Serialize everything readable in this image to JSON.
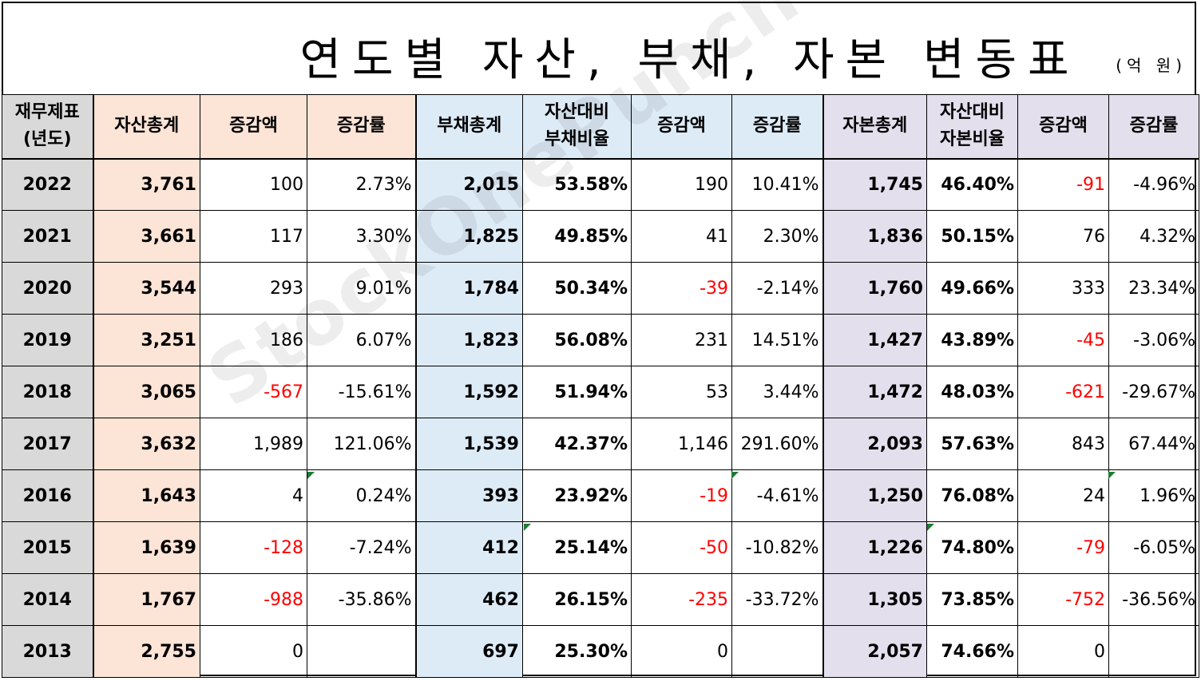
{
  "title": "연도별 자산, 부채, 자본 변동표",
  "unit": "(억 원)",
  "watermark": "StockOnePunch",
  "colors": {
    "neg": "#ff0000",
    "asset": "#fce4d6",
    "liability": "#ddebf7",
    "equity": "#e4dfec",
    "year": "#d9d9d9"
  },
  "headers": [
    {
      "l1": "재무제표",
      "l2": "(년도)"
    },
    {
      "l1": "자산총계",
      "l2": ""
    },
    {
      "l1": "증감액",
      "l2": ""
    },
    {
      "l1": "증감률",
      "l2": ""
    },
    {
      "l1": "부채총계",
      "l2": ""
    },
    {
      "l1": "자산대비",
      "l2": "부채비율"
    },
    {
      "l1": "증감액",
      "l2": ""
    },
    {
      "l1": "증감률",
      "l2": ""
    },
    {
      "l1": "자본총계",
      "l2": ""
    },
    {
      "l1": "자산대비",
      "l2": "자본비율"
    },
    {
      "l1": "증감액",
      "l2": ""
    },
    {
      "l1": "증감률",
      "l2": ""
    }
  ],
  "rows": [
    [
      "2022",
      "3,761",
      "100",
      "2.73%",
      "2,015",
      "53.58%",
      "190",
      "10.41%",
      "1,745",
      "46.40%",
      "-91",
      "-4.96%"
    ],
    [
      "2021",
      "3,661",
      "117",
      "3.30%",
      "1,825",
      "49.85%",
      "41",
      "2.30%",
      "1,836",
      "50.15%",
      "76",
      "4.32%"
    ],
    [
      "2020",
      "3,544",
      "293",
      "9.01%",
      "1,784",
      "50.34%",
      "-39",
      "-2.14%",
      "1,760",
      "49.66%",
      "333",
      "23.34%"
    ],
    [
      "2019",
      "3,251",
      "186",
      "6.07%",
      "1,823",
      "56.08%",
      "231",
      "14.51%",
      "1,427",
      "43.89%",
      "-45",
      "-3.06%"
    ],
    [
      "2018",
      "3,065",
      "-567",
      "-15.61%",
      "1,592",
      "51.94%",
      "53",
      "3.44%",
      "1,472",
      "48.03%",
      "-621",
      "-29.67%"
    ],
    [
      "2017",
      "3,632",
      "1,989",
      "121.06%",
      "1,539",
      "42.37%",
      "1,146",
      "291.60%",
      "2,093",
      "57.63%",
      "843",
      "67.44%"
    ],
    [
      "2016",
      "1,643",
      "4",
      "0.24%",
      "393",
      "23.92%",
      "-19",
      "-4.61%",
      "1,250",
      "76.08%",
      "24",
      "1.96%"
    ],
    [
      "2015",
      "1,639",
      "-128",
      "-7.24%",
      "412",
      "25.14%",
      "-50",
      "-10.82%",
      "1,226",
      "74.80%",
      "-79",
      "-6.05%"
    ],
    [
      "2014",
      "1,767",
      "-988",
      "-35.86%",
      "462",
      "26.15%",
      "-235",
      "-33.72%",
      "1,305",
      "73.85%",
      "-752",
      "-36.56%"
    ],
    [
      "2013",
      "2,755",
      "0",
      "",
      "697",
      "25.30%",
      "0",
      "",
      "2,057",
      "74.66%",
      "0",
      ""
    ]
  ]
}
